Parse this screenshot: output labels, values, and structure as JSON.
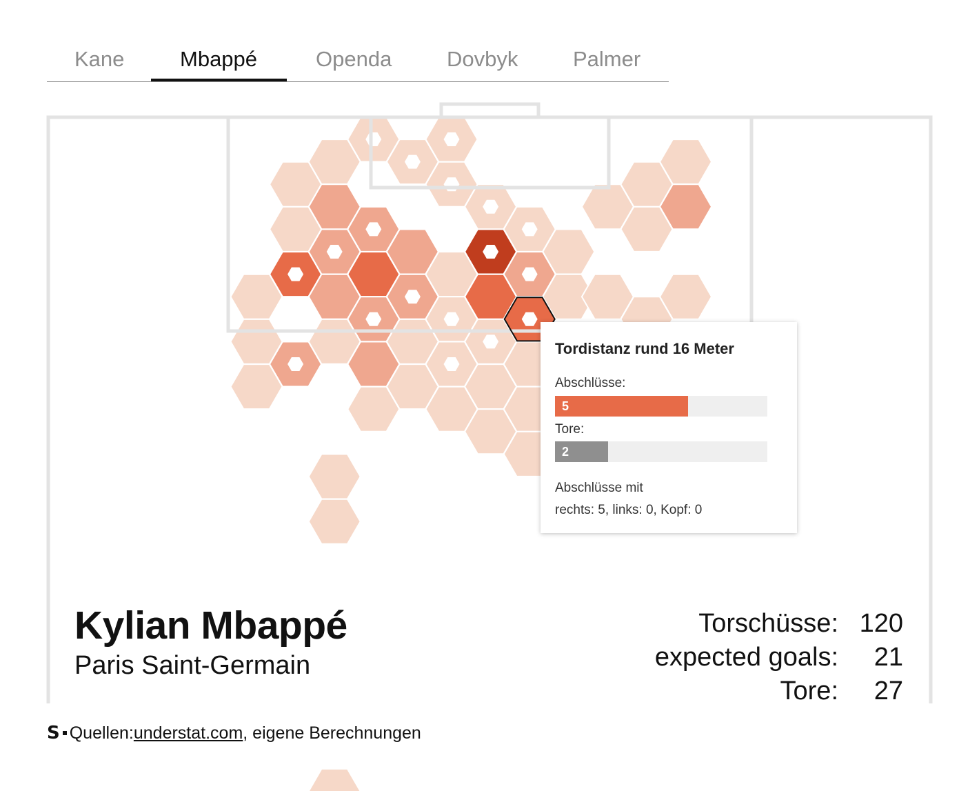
{
  "tabs": [
    {
      "label": "Kane",
      "active": false
    },
    {
      "label": "Mbappé",
      "active": true
    },
    {
      "label": "Openda",
      "active": false
    },
    {
      "label": "Dovbyk",
      "active": false
    },
    {
      "label": "Palmer",
      "active": false
    }
  ],
  "player": {
    "name": "Kylian Mbappé",
    "club": "Paris Saint-Germain"
  },
  "stats": [
    {
      "label": "Torschüsse:",
      "value": "120"
    },
    {
      "label": "expected goals:",
      "value": "21"
    },
    {
      "label": "Tore:",
      "value": "27"
    }
  ],
  "tooltip": {
    "title": "Tordistanz rund 16 Meter",
    "shots_label": "Abschlüsse:",
    "shots_value": "5",
    "goals_label": "Tore:",
    "goals_value": "2",
    "foot_line1": "Abschlüsse mit",
    "foot_line2": "rechts: 5, links: 0, Kopf: 0",
    "shots_fraction": 0.625,
    "goals_fraction": 0.25
  },
  "footer": {
    "logo": "S",
    "source_prefix": "Quellen: ",
    "source_link": "understat.com",
    "source_suffix": ", eigene Berechnungen"
  },
  "colors": {
    "level1": "#f6d8c8",
    "level2": "#efa78f",
    "level3": "#e76b48",
    "level4": "#c03d1e",
    "goal_marker": "#ffffff",
    "pitch_line": "#e3e3e3",
    "goals_bar": "#8f8f8f"
  },
  "chart_data": {
    "type": "heatmap",
    "description_levels": "shot density per hexagon cell; level 1 = fewest shots, level 4 = most; goal = at least one goal scored from the cell",
    "cells": [
      {
        "col": 8,
        "row": 0,
        "level": 1,
        "goal": true
      },
      {
        "col": 10,
        "row": 0,
        "level": 1,
        "goal": true
      },
      {
        "col": 7,
        "row": 1,
        "level": 1,
        "goal": false
      },
      {
        "col": 9,
        "row": 1,
        "level": 1,
        "goal": true
      },
      {
        "col": 16,
        "row": 1,
        "level": 1,
        "goal": false
      },
      {
        "col": 6,
        "row": 2,
        "level": 1,
        "goal": false
      },
      {
        "col": 10,
        "row": 2,
        "level": 1,
        "goal": true
      },
      {
        "col": 15,
        "row": 2,
        "level": 1,
        "goal": false
      },
      {
        "col": 7,
        "row": 3,
        "level": 2,
        "goal": false
      },
      {
        "col": 11,
        "row": 3,
        "level": 1,
        "goal": true
      },
      {
        "col": 14,
        "row": 3,
        "level": 1,
        "goal": false
      },
      {
        "col": 16,
        "row": 3,
        "level": 2,
        "goal": false
      },
      {
        "col": 6,
        "row": 4,
        "level": 1,
        "goal": false
      },
      {
        "col": 8,
        "row": 4,
        "level": 2,
        "goal": true
      },
      {
        "col": 12,
        "row": 4,
        "level": 1,
        "goal": true
      },
      {
        "col": 15,
        "row": 4,
        "level": 1,
        "goal": false
      },
      {
        "col": 7,
        "row": 5,
        "level": 2,
        "goal": true
      },
      {
        "col": 9,
        "row": 5,
        "level": 2,
        "goal": false
      },
      {
        "col": 11,
        "row": 5,
        "level": 4,
        "goal": true
      },
      {
        "col": 13,
        "row": 5,
        "level": 1,
        "goal": false
      },
      {
        "col": 6,
        "row": 6,
        "level": 3,
        "goal": true
      },
      {
        "col": 8,
        "row": 6,
        "level": 3,
        "goal": false
      },
      {
        "col": 10,
        "row": 6,
        "level": 1,
        "goal": false
      },
      {
        "col": 12,
        "row": 6,
        "level": 2,
        "goal": true
      },
      {
        "col": 5,
        "row": 7,
        "level": 1,
        "goal": false
      },
      {
        "col": 7,
        "row": 7,
        "level": 2,
        "goal": false
      },
      {
        "col": 9,
        "row": 7,
        "level": 2,
        "goal": true
      },
      {
        "col": 11,
        "row": 7,
        "level": 3,
        "goal": false
      },
      {
        "col": 13,
        "row": 7,
        "level": 1,
        "goal": false
      },
      {
        "col": 14,
        "row": 7,
        "level": 1,
        "goal": false
      },
      {
        "col": 16,
        "row": 7,
        "level": 1,
        "goal": false
      },
      {
        "col": 8,
        "row": 8,
        "level": 2,
        "goal": true
      },
      {
        "col": 10,
        "row": 8,
        "level": 1,
        "goal": true
      },
      {
        "col": 12,
        "row": 8,
        "level": 3,
        "goal": true,
        "selected": true
      },
      {
        "col": 15,
        "row": 8,
        "level": 1,
        "goal": false
      },
      {
        "col": 5,
        "row": 9,
        "level": 1,
        "goal": false
      },
      {
        "col": 7,
        "row": 9,
        "level": 1,
        "goal": false
      },
      {
        "col": 9,
        "row": 9,
        "level": 1,
        "goal": false
      },
      {
        "col": 11,
        "row": 9,
        "level": 1,
        "goal": true
      },
      {
        "col": 6,
        "row": 10,
        "level": 2,
        "goal": true
      },
      {
        "col": 8,
        "row": 10,
        "level": 2,
        "goal": false
      },
      {
        "col": 10,
        "row": 10,
        "level": 1,
        "goal": true
      },
      {
        "col": 12,
        "row": 10,
        "level": 1,
        "goal": false
      },
      {
        "col": 5,
        "row": 11,
        "level": 1,
        "goal": false
      },
      {
        "col": 9,
        "row": 11,
        "level": 1,
        "goal": false
      },
      {
        "col": 11,
        "row": 11,
        "level": 1,
        "goal": false
      },
      {
        "col": 8,
        "row": 12,
        "level": 1,
        "goal": false
      },
      {
        "col": 10,
        "row": 12,
        "level": 1,
        "goal": false
      },
      {
        "col": 12,
        "row": 12,
        "level": 1,
        "goal": false
      },
      {
        "col": 11,
        "row": 13,
        "level": 1,
        "goal": false
      },
      {
        "col": 12,
        "row": 14,
        "level": 1,
        "goal": false
      },
      {
        "col": 7,
        "row": 15,
        "level": 1,
        "goal": false
      },
      {
        "col": 7,
        "row": 17,
        "level": 1,
        "goal": false
      },
      {
        "col": 7,
        "row": 29,
        "level": 1,
        "goal": false
      }
    ]
  }
}
